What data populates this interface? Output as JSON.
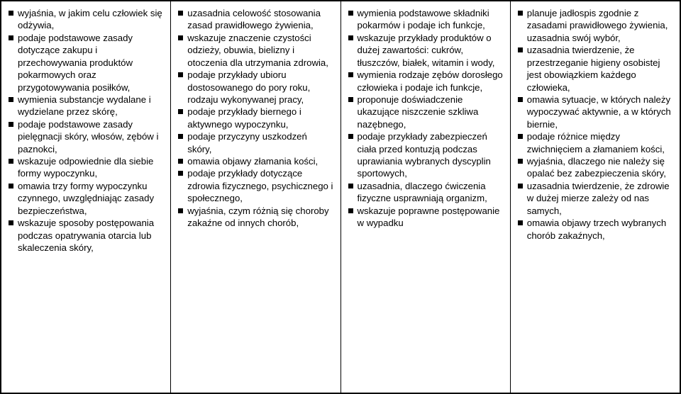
{
  "columns": [
    {
      "items": [
        {
          "lead": "",
          "text": "wyjaśnia, w jakim celu człowiek się odżywia,"
        },
        {
          "text": "podaje podstawowe zasady dotyczące zakupu i przechowywania produktów pokarmowych oraz przygotowywania posiłków,"
        },
        {
          "text": "wymienia substancje wydalane i wydzielane przez skórę,"
        },
        {
          "text": "podaje podstawowe zasady pielęgnacji skóry, włosów, zębów i paznokci,"
        },
        {
          "text": "wskazuje odpowiednie dla siebie formy wypoczynku,"
        },
        {
          "text": "omawia trzy formy wypoczynku czynnego, uwzględniając zasady bezpieczeństwa,"
        },
        {
          "text": "wskazuje sposoby postępowania podczas opatrywania otarcia lub skaleczenia skóry,"
        }
      ]
    },
    {
      "items": [
        {
          "text": "uzasadnia celowość stosowania zasad prawidłowego żywienia,"
        },
        {
          "text": "wskazuje znaczenie czystości odzieży, obuwia, bielizny i otoczenia dla utrzymania zdrowia,"
        },
        {
          "text": "podaje przykłady ubioru dostosowanego do pory roku, rodzaju wykonywanej pracy,"
        },
        {
          "text": "podaje przykłady biernego i aktywnego wypoczynku,"
        },
        {
          "text": "podaje przyczyny uszkodzeń skóry,"
        },
        {
          "text": "omawia objawy złamania kości,"
        },
        {
          "text": "podaje przykłady dotyczące zdrowia fizycznego, psychicznego i społecznego,"
        },
        {
          "text": "wyjaśnia, czym różnią się choroby zakaźne od innych chorób,"
        }
      ]
    },
    {
      "items": [
        {
          "text": "wymienia podstawowe składniki pokarmów i podaje  ich funkcje,"
        },
        {
          "text": "wskazuje przykłady produktów o dużej zawartości: cukrów, tłuszczów, białek, witamin i wody,"
        },
        {
          "text": "wymienia rodzaje zębów dorosłego człowieka i podaje ich funkcje,"
        },
        {
          "text": "proponuje doświadczenie ukazujące niszczenie szkliwa nazębnego,"
        },
        {
          "text": "podaje przykłady zabezpieczeń ciała przed kontuzją podczas uprawiania wybranych dyscyplin sportowych,"
        },
        {
          "text": "uzasadnia, dlaczego ćwiczenia fizyczne usprawniają organizm,"
        },
        {
          "text": "wskazuje poprawne postępowanie w wypadku"
        }
      ]
    },
    {
      "items": [
        {
          "text": "planuje jadłospis zgodnie z zasadami prawidłowego żywienia, uzasadnia swój wybór,"
        },
        {
          "text": "uzasadnia twierdzenie, że przestrzeganie higieny osobistej jest obowiązkiem każdego człowieka,"
        },
        {
          "text": "omawia sytuacje, w których należy wypoczywać aktywnie, a w których biernie,"
        },
        {
          "text": "podaje różnice między zwichnięciem a złamaniem kości,"
        },
        {
          "text": "wyjaśnia, dlaczego nie należy się opalać bez zabezpieczenia skóry,"
        },
        {
          "text": "uzasadnia twierdzenie, że zdrowie w dużej mierze zależy od nas samych,"
        },
        {
          "text": "omawia objawy trzech wybranych chorób zakaźnych,"
        }
      ]
    }
  ]
}
